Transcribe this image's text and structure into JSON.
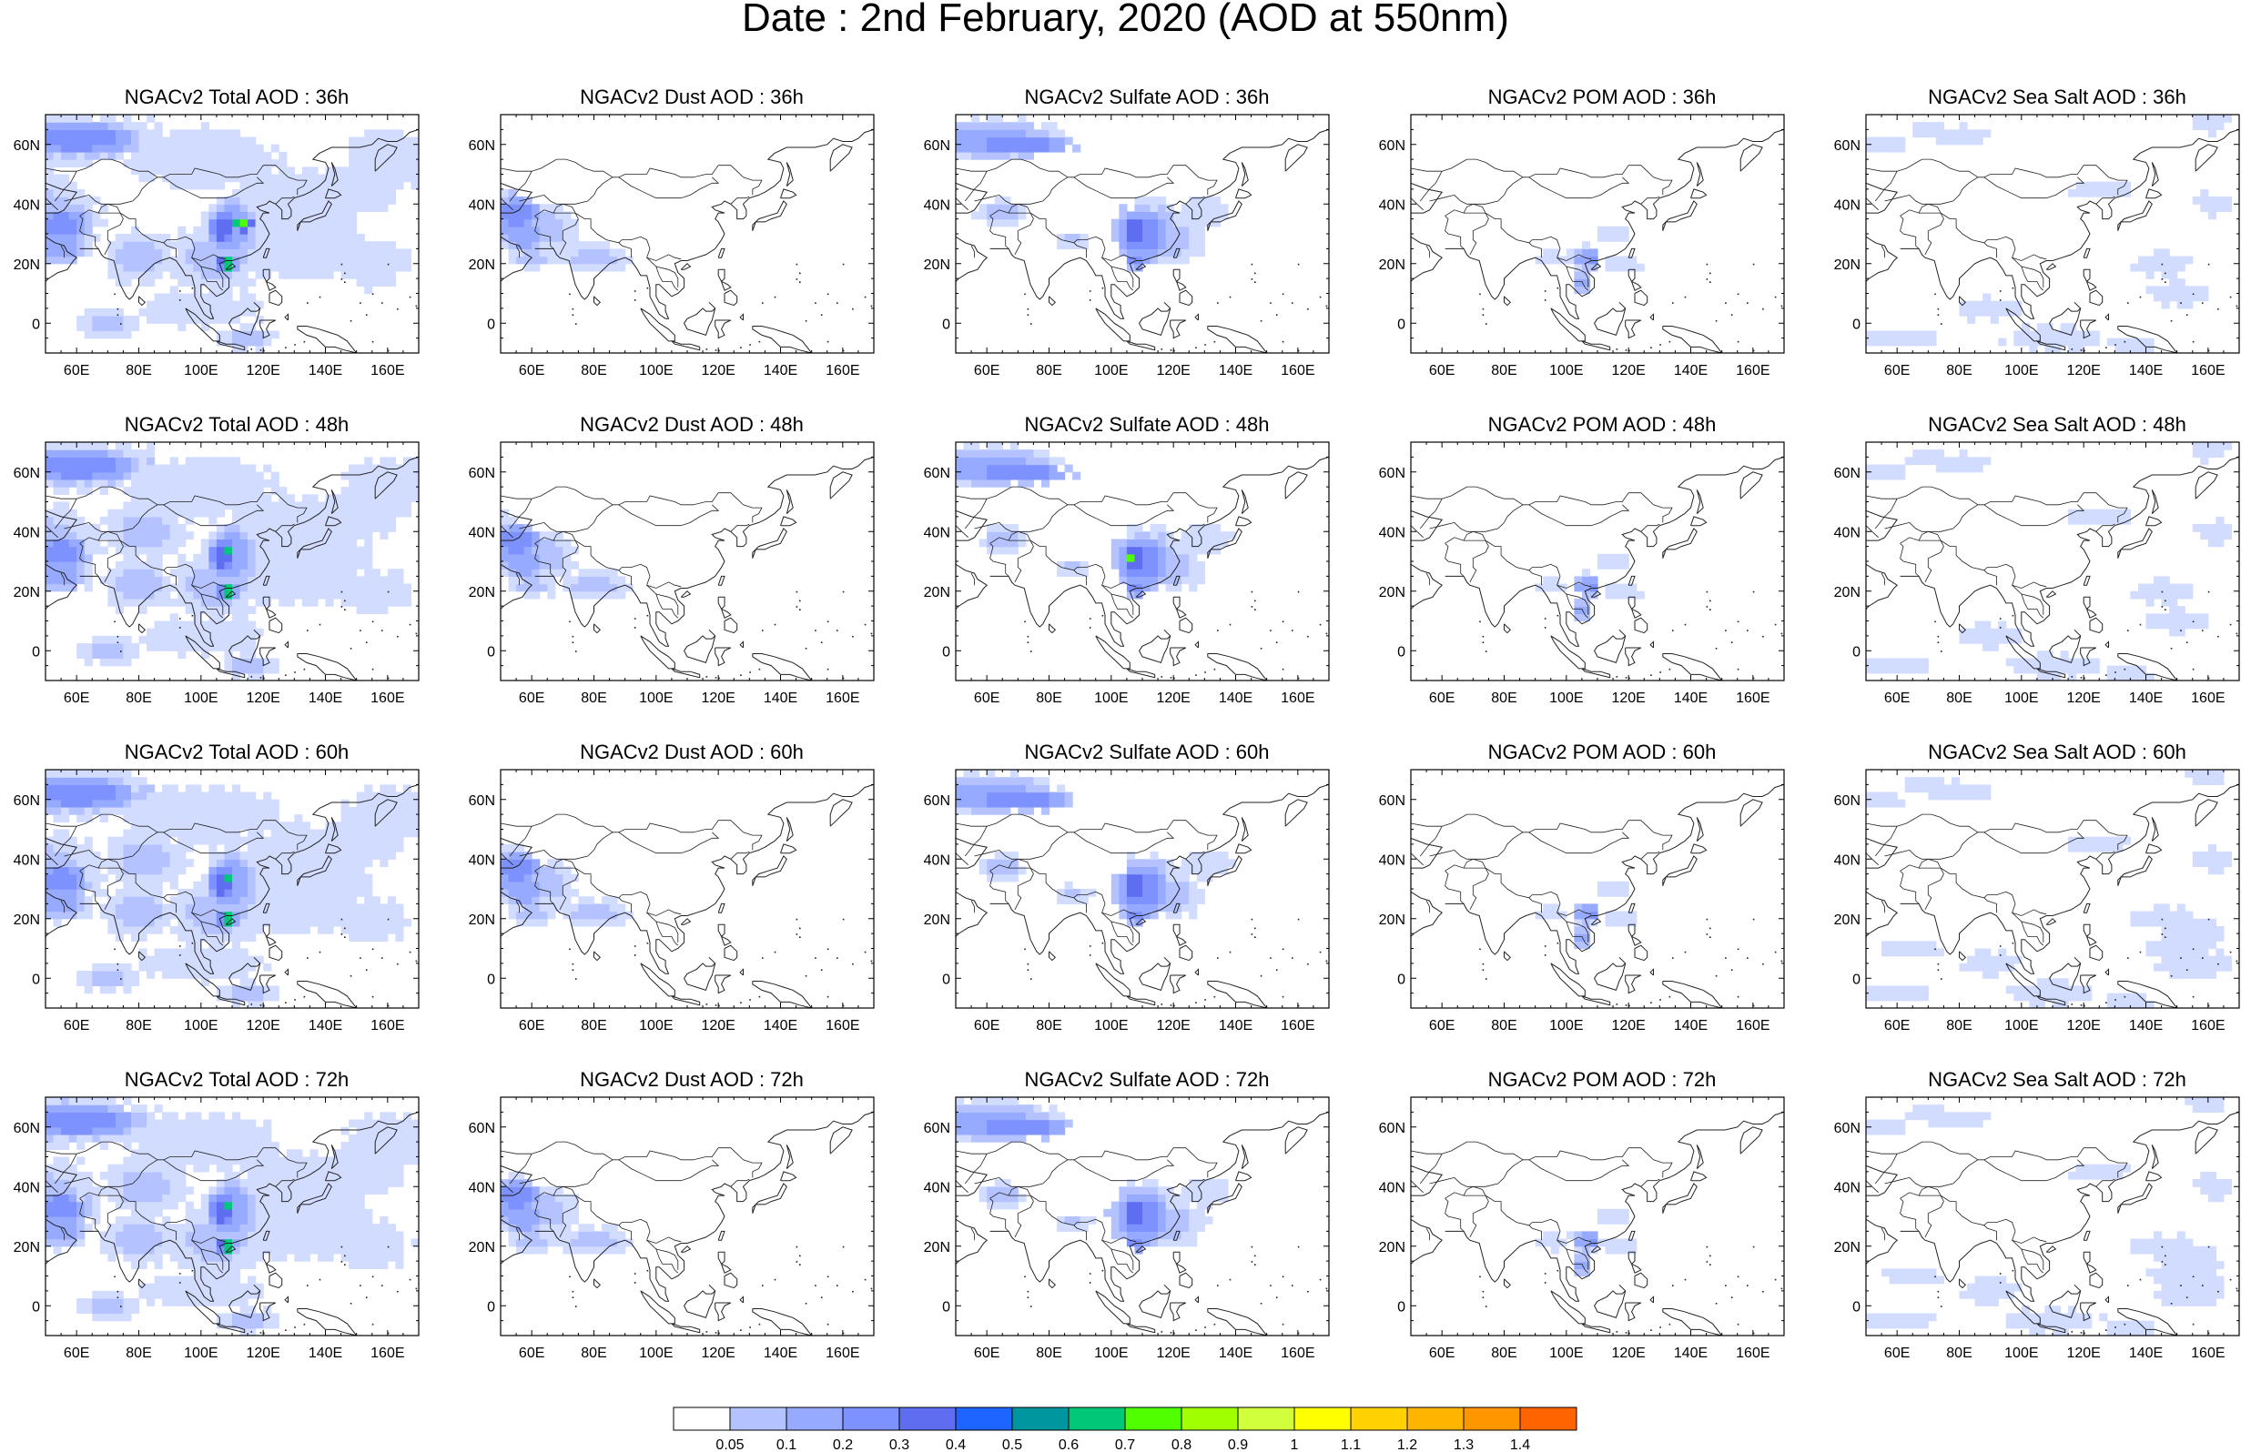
{
  "title": "Date : 2nd February, 2020 (AOD at 550nm)",
  "colors": {
    "colorbar": [
      "#ffffff",
      "#d2dcff",
      "#b4c3ff",
      "#96aaff",
      "#7d91ff",
      "#5f6ef0",
      "#1e64ff",
      "#0096a0",
      "#00c878",
      "#50ff00",
      "#a0ff00",
      "#d2ff3c",
      "#ffff00",
      "#ffd200",
      "#ffb400",
      "#ff9600",
      "#ff6400",
      "#ff1e00"
    ],
    "aod_fill": [
      "#d2dcff",
      "#b4c3ff",
      "#96aaff",
      "#7d91ff",
      "#5f6ef0",
      "#00c878",
      "#50ff00"
    ],
    "coast": "#222222"
  },
  "map": {
    "lon_ticks": [
      "60E",
      "80E",
      "100E",
      "120E",
      "140E",
      "160E"
    ],
    "lat_ticks": [
      "60N",
      "40N",
      "20N",
      "0"
    ],
    "lon_values": [
      60,
      80,
      100,
      120,
      140,
      160
    ],
    "lat_values": [
      60,
      40,
      20,
      0
    ],
    "lon_range": [
      50,
      170
    ],
    "lat_range": [
      -10,
      70
    ]
  },
  "panels": [
    {
      "id": "total-36",
      "title": "NGACv2 Total AOD : 36h",
      "species": "total",
      "hour": 36,
      "max_aod": 0.8
    },
    {
      "id": "dust-36",
      "title": "NGACv2 Dust AOD : 36h",
      "species": "dust",
      "hour": 36,
      "max_aod": 0.3
    },
    {
      "id": "sulfate-36",
      "title": "NGACv2 Sulfate AOD : 36h",
      "species": "sulfate",
      "hour": 36,
      "max_aod": 0.4
    },
    {
      "id": "pom-36",
      "title": "NGACv2 POM AOD : 36h",
      "species": "pom",
      "hour": 36,
      "max_aod": 0.2
    },
    {
      "id": "seasalt-36",
      "title": "NGACv2 Sea Salt AOD : 36h",
      "species": "seasalt",
      "hour": 36,
      "max_aod": 0.1
    },
    {
      "id": "total-48",
      "title": "NGACv2 Total AOD : 48h",
      "species": "total",
      "hour": 48,
      "max_aod": 0.8
    },
    {
      "id": "dust-48",
      "title": "NGACv2 Dust AOD : 48h",
      "species": "dust",
      "hour": 48,
      "max_aod": 0.3
    },
    {
      "id": "sulfate-48",
      "title": "NGACv2 Sulfate AOD : 48h",
      "species": "sulfate",
      "hour": 48,
      "max_aod": 0.7
    },
    {
      "id": "pom-48",
      "title": "NGACv2 POM AOD : 48h",
      "species": "pom",
      "hour": 48,
      "max_aod": 0.2
    },
    {
      "id": "seasalt-48",
      "title": "NGACv2 Sea Salt AOD : 48h",
      "species": "seasalt",
      "hour": 48,
      "max_aod": 0.1
    },
    {
      "id": "total-60",
      "title": "NGACv2 Total AOD : 60h",
      "species": "total",
      "hour": 60,
      "max_aod": 0.7
    },
    {
      "id": "dust-60",
      "title": "NGACv2 Dust AOD : 60h",
      "species": "dust",
      "hour": 60,
      "max_aod": 0.3
    },
    {
      "id": "sulfate-60",
      "title": "NGACv2 Sulfate AOD : 60h",
      "species": "sulfate",
      "hour": 60,
      "max_aod": 0.4
    },
    {
      "id": "pom-60",
      "title": "NGACv2 POM AOD : 60h",
      "species": "pom",
      "hour": 60,
      "max_aod": 0.2
    },
    {
      "id": "seasalt-60",
      "title": "NGACv2 Sea Salt AOD : 60h",
      "species": "seasalt",
      "hour": 60,
      "max_aod": 0.1
    },
    {
      "id": "total-72",
      "title": "NGACv2 Total AOD : 72h",
      "species": "total",
      "hour": 72,
      "max_aod": 0.8
    },
    {
      "id": "dust-72",
      "title": "NGACv2 Dust AOD : 72h",
      "species": "dust",
      "hour": 72,
      "max_aod": 0.3
    },
    {
      "id": "sulfate-72",
      "title": "NGACv2 Sulfate AOD : 72h",
      "species": "sulfate",
      "hour": 72,
      "max_aod": 0.4
    },
    {
      "id": "pom-72",
      "title": "NGACv2 POM AOD : 72h",
      "species": "pom",
      "hour": 72,
      "max_aod": 0.2
    },
    {
      "id": "seasalt-72",
      "title": "NGACv2 Sea Salt  AOD : 72h",
      "species": "seasalt",
      "hour": 72,
      "max_aod": 0.1
    }
  ],
  "colorbar": {
    "labels": [
      "0.05",
      "0.1",
      "0.2",
      "0.3",
      "0.4",
      "0.5",
      "0.6",
      "0.7",
      "0.8",
      "0.9",
      "1",
      "1.1",
      "1.2",
      "1.3",
      "1.4"
    ]
  }
}
